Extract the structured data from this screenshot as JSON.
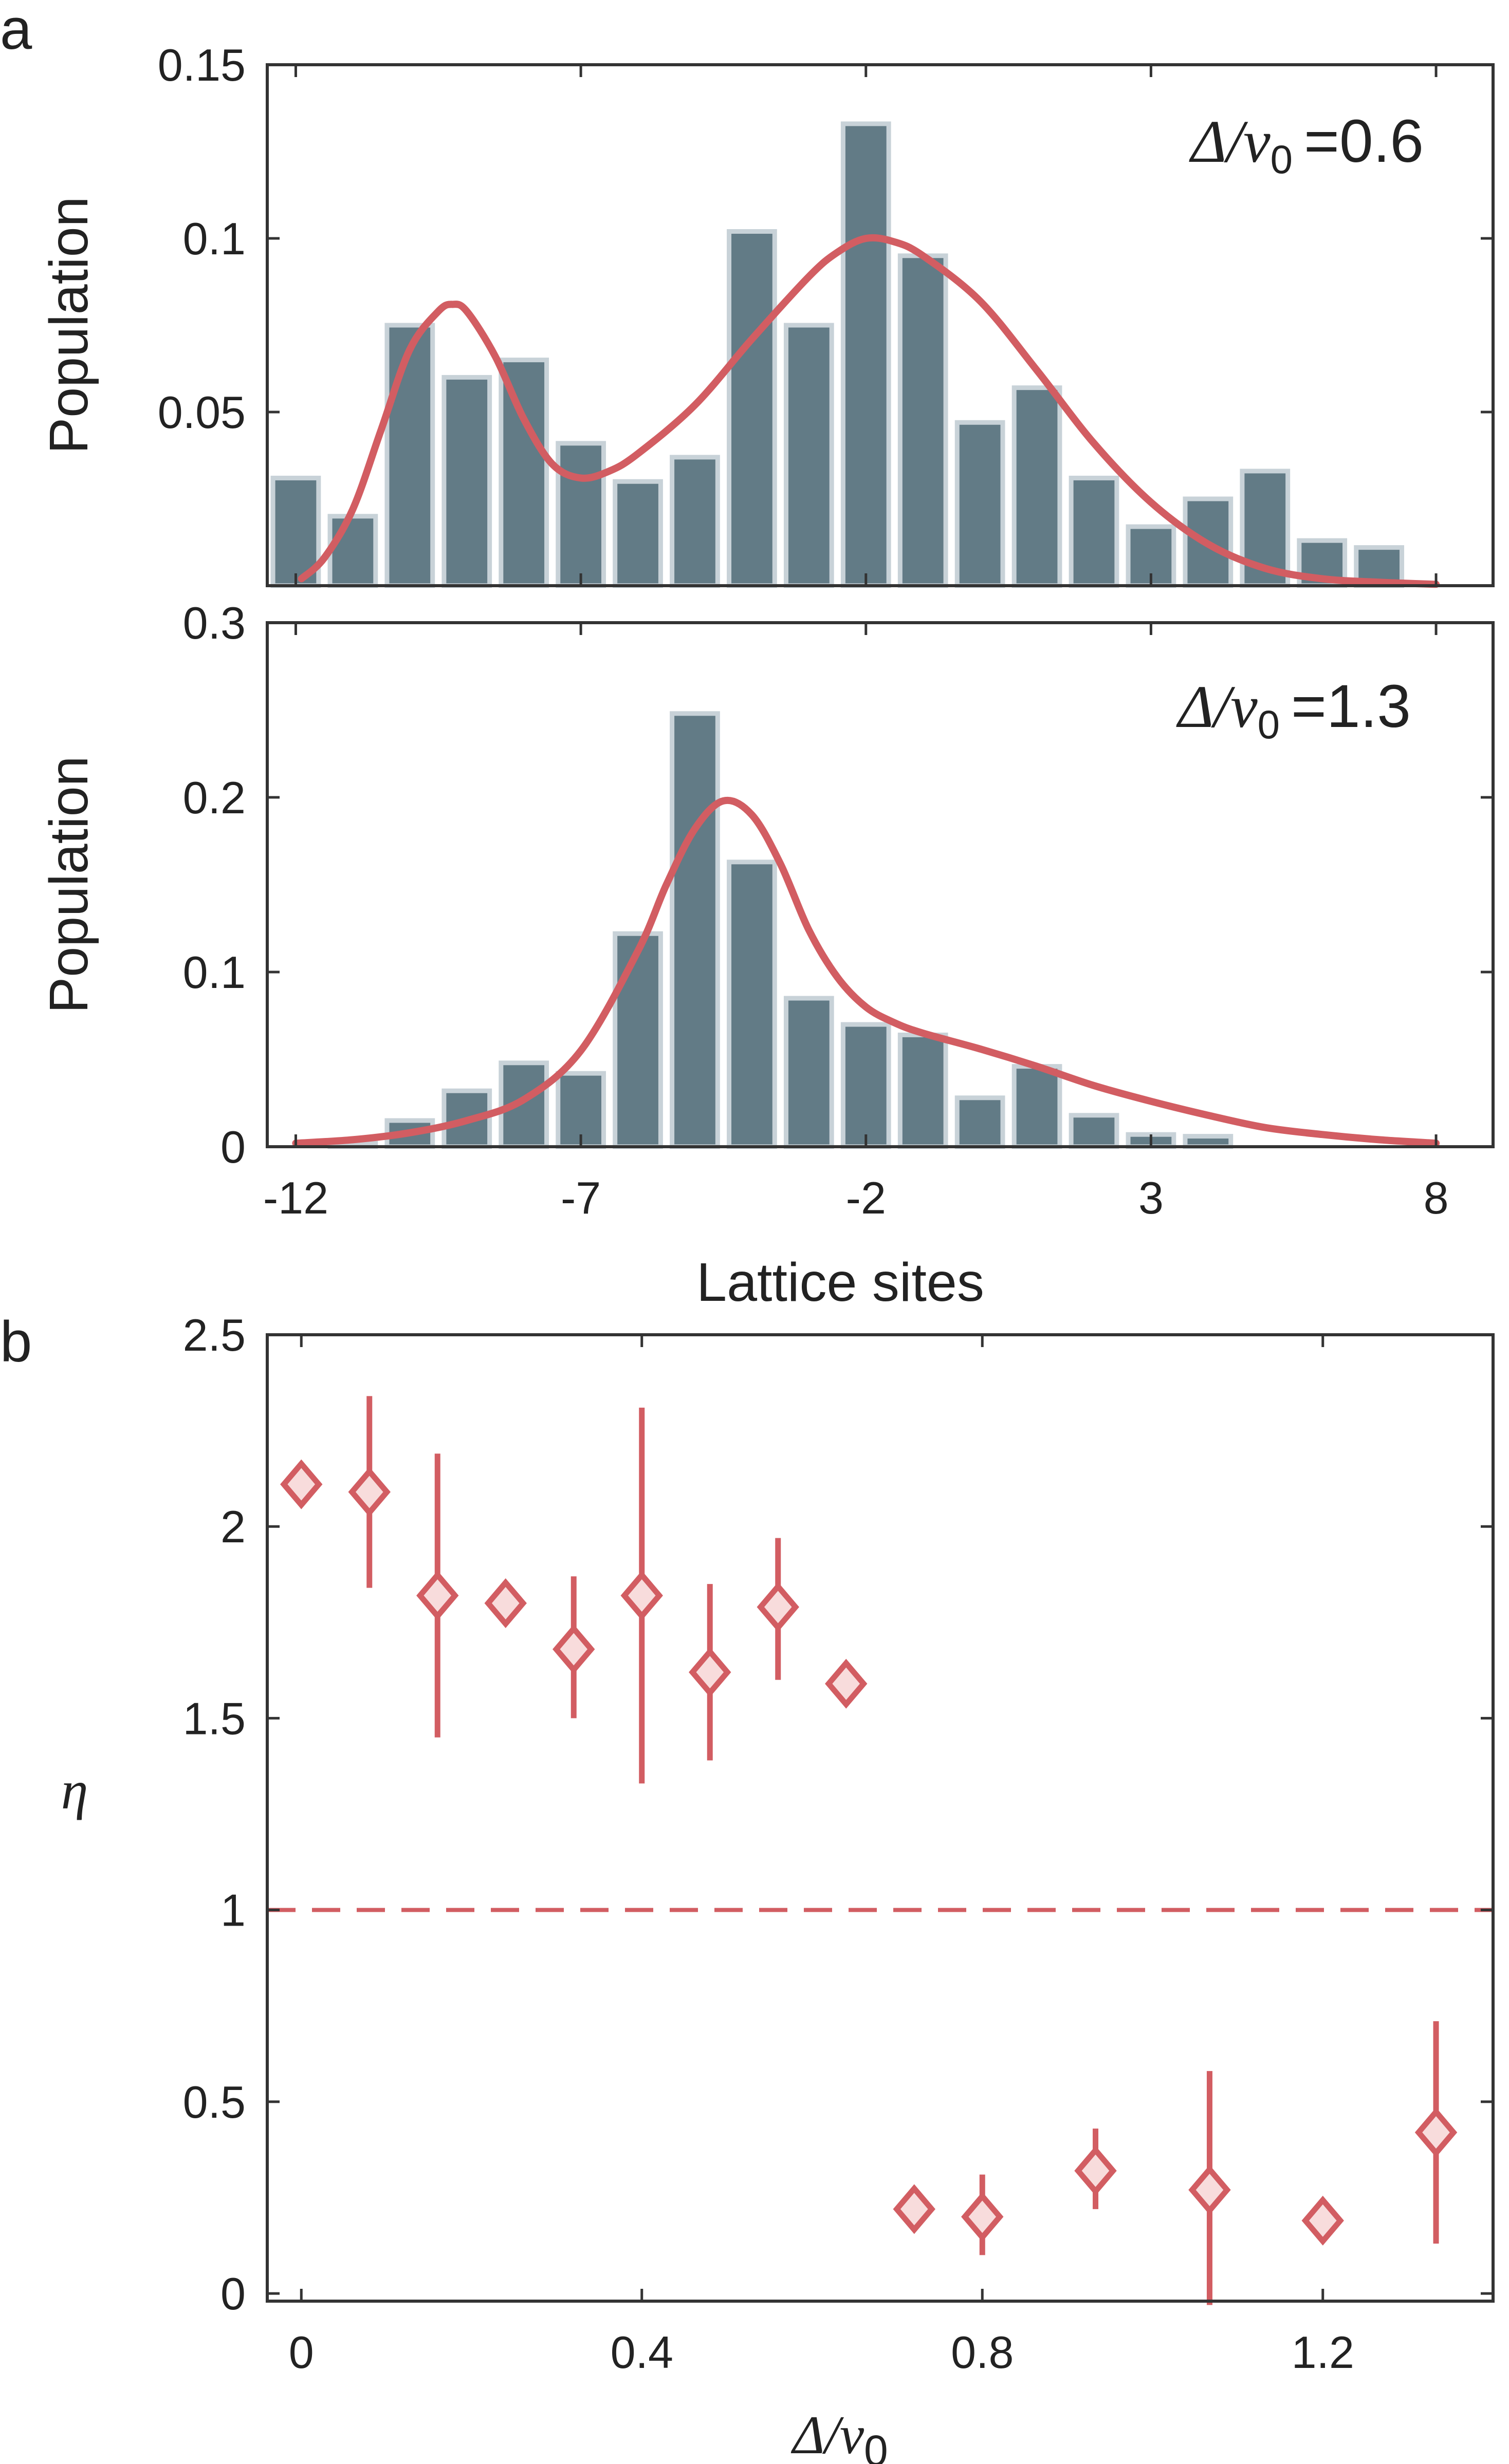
{
  "chart_data": [
    {
      "panel": "a",
      "type": "bar",
      "annotation_symbol": "Δ/ν",
      "annotation_subscript": "0",
      "annotation_value": "=0.6",
      "ylabel": "Population",
      "xlabel": "",
      "xlim": [
        -12.5,
        9.0
      ],
      "ylim": [
        0,
        0.15
      ],
      "yticks": [
        0.05,
        0.1,
        0.15
      ],
      "ytick_labels": [
        "0.05",
        "0.1",
        "0.15"
      ],
      "xticks": [
        -12,
        -7,
        -2,
        3,
        8
      ],
      "xtick_labels": [
        "",
        "",
        "",
        "",
        ""
      ],
      "categories": [
        -12,
        -11,
        -10,
        -9,
        -8,
        -7,
        -6,
        -5,
        -4,
        -3,
        -2,
        -1,
        0,
        1,
        2,
        3,
        4,
        5,
        6,
        7
      ],
      "values": [
        0.031,
        0.02,
        0.075,
        0.06,
        0.065,
        0.041,
        0.03,
        0.037,
        0.102,
        0.075,
        0.133,
        0.095,
        0.047,
        0.057,
        0.031,
        0.017,
        0.025,
        0.033,
        0.013,
        0.011
      ],
      "fit": {
        "x": [
          -11.9,
          -11.5,
          -11,
          -10.5,
          -10,
          -9.5,
          -9.25,
          -9,
          -8.5,
          -8,
          -7.5,
          -7,
          -6.5,
          -6,
          -5,
          -4,
          -3,
          -2.5,
          -2,
          -1.5,
          -1,
          0,
          1,
          2,
          3,
          4,
          5,
          6,
          7,
          8
        ],
        "y": [
          0.002,
          0.008,
          0.022,
          0.045,
          0.068,
          0.079,
          0.081,
          0.079,
          0.066,
          0.048,
          0.035,
          0.031,
          0.033,
          0.038,
          0.052,
          0.071,
          0.089,
          0.096,
          0.1,
          0.099,
          0.095,
          0.082,
          0.062,
          0.041,
          0.024,
          0.012,
          0.005,
          0.002,
          0.001,
          0.0004
        ]
      }
    },
    {
      "panel": "a2",
      "type": "bar",
      "annotation_symbol": "Δ/ν",
      "annotation_subscript": "0",
      "annotation_value": "=1.3",
      "ylabel": "Population",
      "xlabel": "Lattice sites",
      "xlim": [
        -12.5,
        9.0
      ],
      "ylim": [
        0,
        0.3
      ],
      "yticks": [
        0,
        0.1,
        0.2,
        0.3
      ],
      "ytick_labels": [
        "0",
        "0.1",
        "0.2",
        "0.3"
      ],
      "xticks": [
        -12,
        -7,
        -2,
        3,
        8
      ],
      "xtick_labels": [
        "-12",
        "-7",
        "-2",
        "3",
        "8"
      ],
      "categories": [
        -12,
        -11,
        -10,
        -9,
        -8,
        -7,
        -6,
        -5,
        -4,
        -3,
        -2,
        -1,
        0,
        1,
        2,
        3,
        4,
        5,
        6,
        7
      ],
      "values": [
        0,
        0.002,
        0.015,
        0.032,
        0.048,
        0.042,
        0.122,
        0.248,
        0.163,
        0.085,
        0.07,
        0.064,
        0.028,
        0.046,
        0.018,
        0.007,
        0.006,
        0,
        0,
        0
      ],
      "fit": {
        "x": [
          -12,
          -11,
          -10,
          -9,
          -8,
          -7,
          -6,
          -5.5,
          -5,
          -4.5,
          -4,
          -3.5,
          -3,
          -2.5,
          -2,
          -1.5,
          -1,
          0,
          1,
          2,
          3,
          4,
          5,
          6,
          7,
          8
        ],
        "y": [
          0.002,
          0.004,
          0.008,
          0.015,
          0.027,
          0.055,
          0.112,
          0.15,
          0.182,
          0.198,
          0.19,
          0.162,
          0.124,
          0.097,
          0.08,
          0.071,
          0.065,
          0.056,
          0.046,
          0.035,
          0.026,
          0.018,
          0.011,
          0.007,
          0.004,
          0.002
        ]
      }
    },
    {
      "panel": "b",
      "type": "scatter",
      "ylabel": "η",
      "xlabel_symbol": "Δ/ν",
      "xlabel_subscript": "0",
      "xlim": [
        -0.04,
        1.4
      ],
      "ylim": [
        -0.02,
        2.5
      ],
      "yticks": [
        0,
        0.5,
        1,
        1.5,
        2,
        2.5
      ],
      "ytick_labels": [
        "0",
        "0.5",
        "1",
        "1.5",
        "2",
        "2.5"
      ],
      "xticks": [
        0,
        0.4,
        0.8,
        1.2
      ],
      "xtick_labels": [
        "0",
        "0.4",
        "0.8",
        "1.2"
      ],
      "reference_line_y": 1,
      "x": [
        0,
        0.08,
        0.16,
        0.24,
        0.32,
        0.4,
        0.48,
        0.56,
        0.64,
        0.72,
        0.8,
        0.933,
        1.067,
        1.2,
        1.333
      ],
      "y": [
        2.11,
        2.09,
        1.82,
        1.8,
        1.68,
        1.82,
        1.62,
        1.79,
        1.59,
        0.22,
        0.2,
        0.32,
        0.27,
        0.19,
        0.42
      ],
      "err_low": [
        null,
        1.84,
        1.45,
        null,
        1.5,
        1.33,
        1.39,
        1.6,
        null,
        null,
        0.1,
        0.22,
        -0.03,
        null,
        0.13
      ],
      "err_high": [
        null,
        2.34,
        2.19,
        null,
        1.87,
        2.31,
        1.85,
        1.97,
        null,
        null,
        0.31,
        0.43,
        0.58,
        null,
        0.71
      ]
    }
  ]
}
